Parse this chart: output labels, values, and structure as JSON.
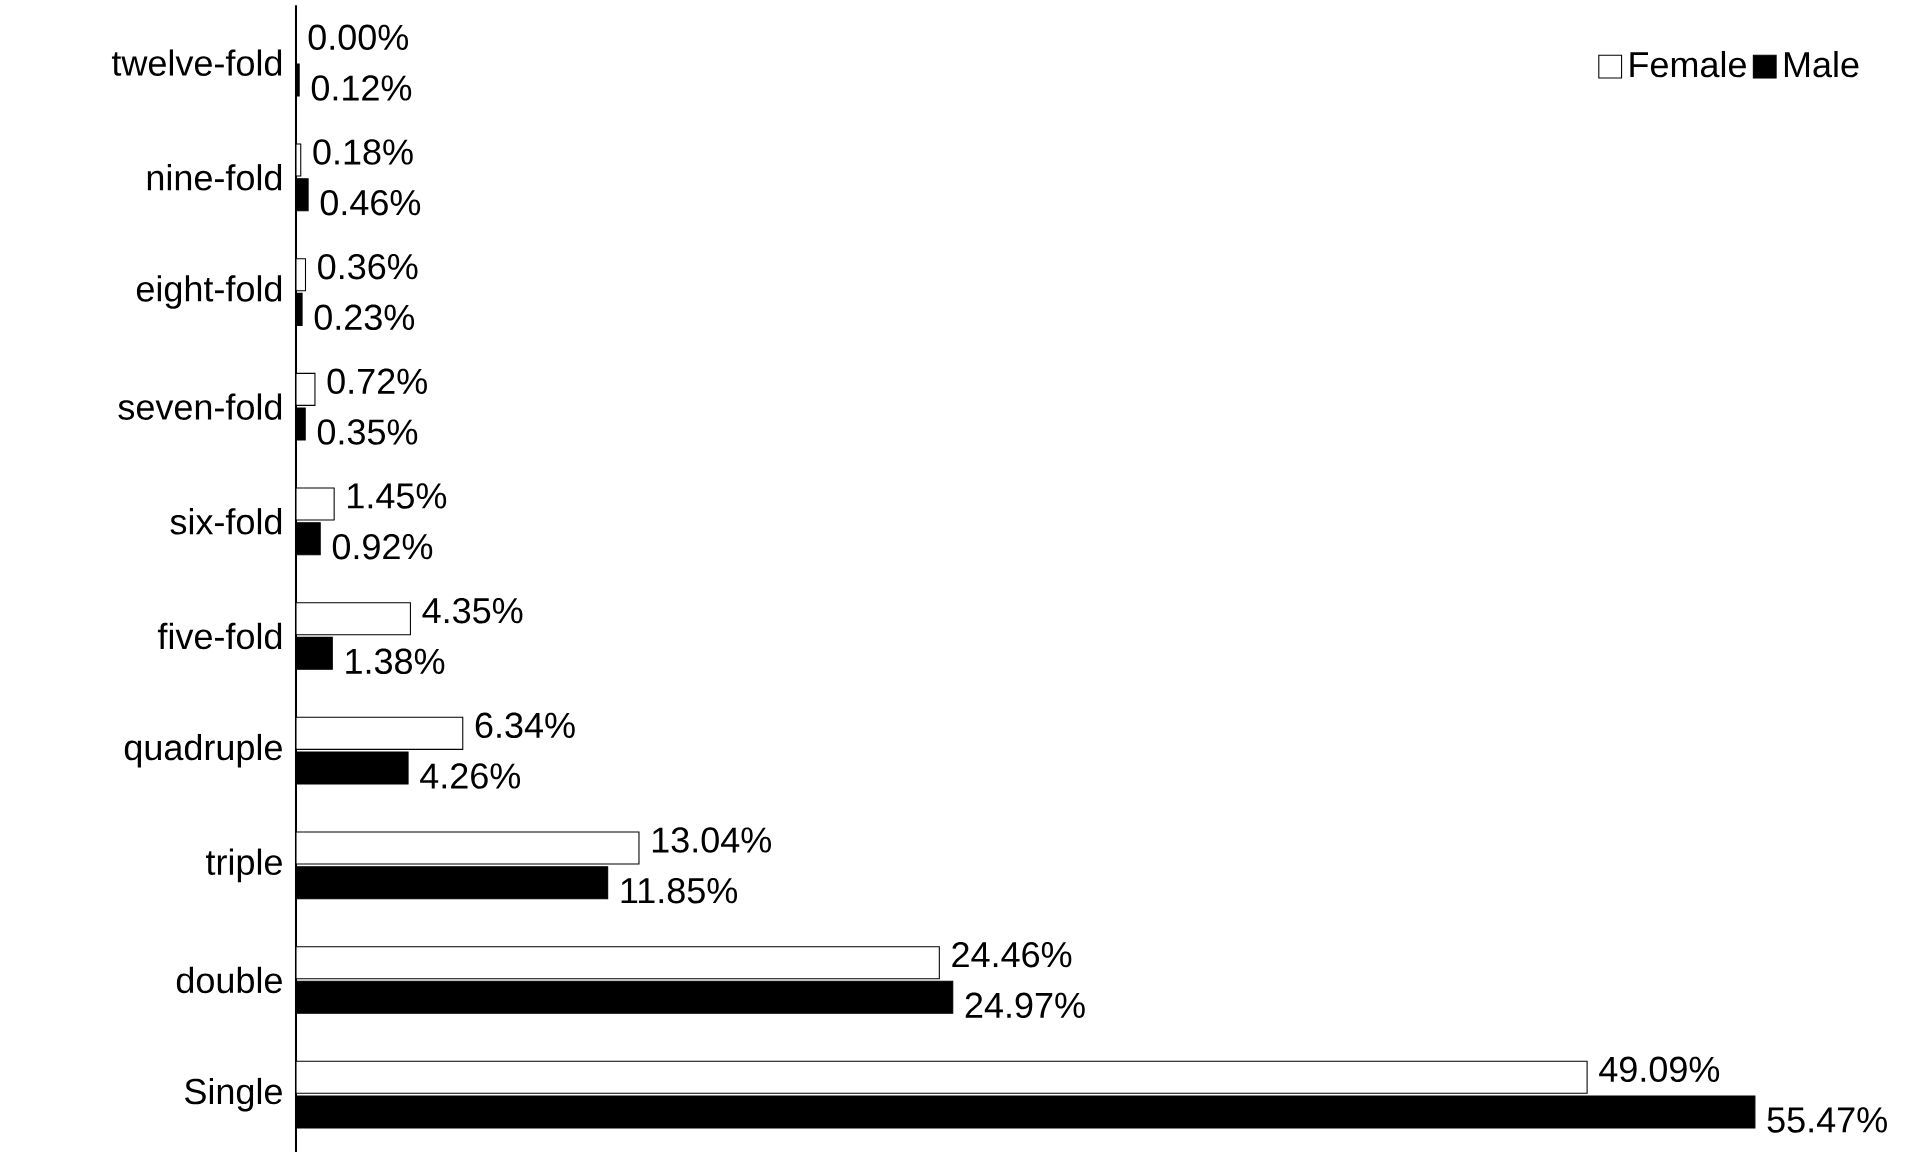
{
  "chart_data": {
    "type": "bar",
    "orientation": "horizontal",
    "legend": "top right",
    "categories": [
      "twelve-fold",
      "nine-fold",
      "eight-fold",
      "seven-fold",
      "six-fold",
      "five-fold",
      "quadruple",
      "triple",
      "double",
      "Single"
    ],
    "series": [
      {
        "name": "Female",
        "color": "#ffffff",
        "values": [
          0.0,
          0.18,
          0.36,
          0.72,
          1.45,
          4.35,
          6.34,
          13.04,
          24.46,
          49.09
        ],
        "value_labels": [
          "0.00%",
          "0.18%",
          "0.36%",
          "0.72%",
          "1.45%",
          "4.35%",
          "6.34%",
          "13.04%",
          "24.46%",
          "49.09%"
        ]
      },
      {
        "name": "Male",
        "color": "#000000",
        "values": [
          0.12,
          0.46,
          0.23,
          0.35,
          0.92,
          1.38,
          4.26,
          11.85,
          24.97,
          55.47
        ],
        "value_labels": [
          "0.12%",
          "0.46%",
          "0.23%",
          "0.35%",
          "0.92%",
          "1.38%",
          "4.26%",
          "11.85%",
          "24.97%",
          "55.47%"
        ]
      }
    ]
  }
}
